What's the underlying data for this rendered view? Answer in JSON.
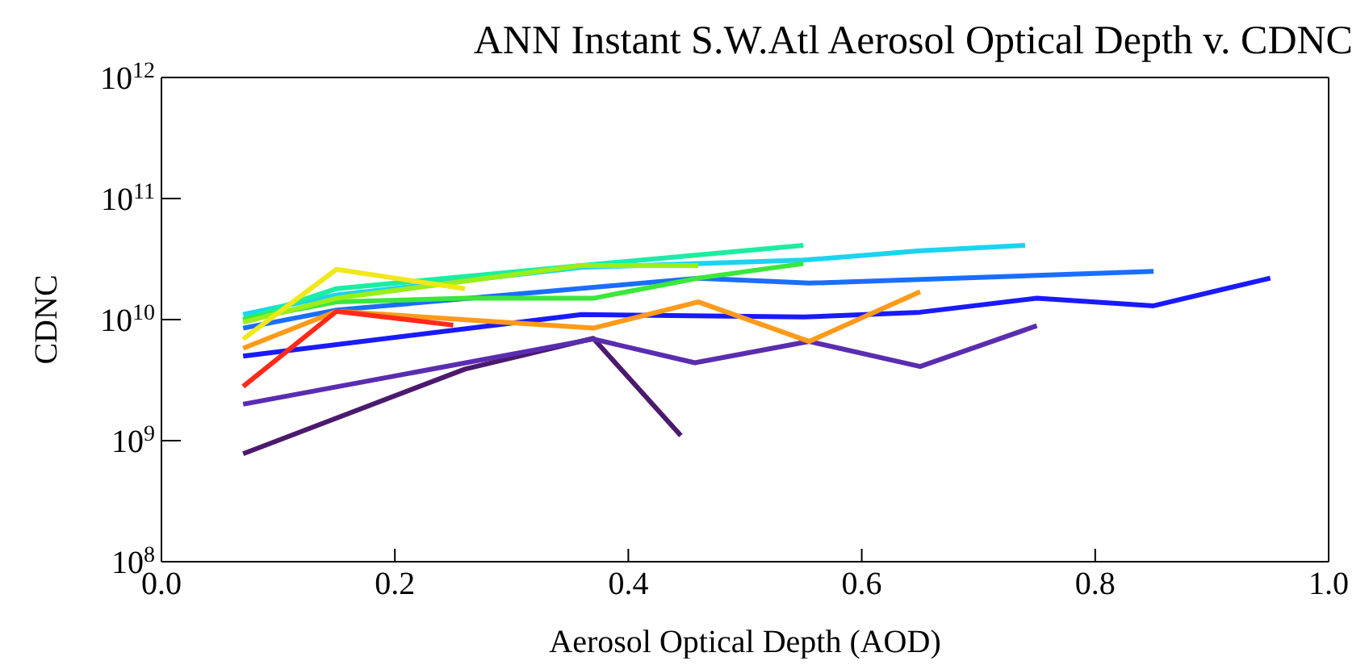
{
  "chart_data": {
    "type": "line",
    "title": "ANN Instant S.W.Atl Aerosol Optical Depth v. CDNC",
    "xlabel": "Aerosol Optical Depth (AOD)",
    "ylabel": "CDNC",
    "log": "y",
    "grid": false,
    "legend": false,
    "marker": "none",
    "line_style": "solid",
    "xlim": [
      0.0,
      1.0
    ],
    "xticks": [
      {
        "value": 0,
        "label": "0.0"
      },
      0.2,
      0.4,
      0.6,
      0.8,
      {
        "value": 1,
        "label": "1.0"
      }
    ],
    "ylim": [
      100000000,
      1000000000000
    ],
    "yticks": [
      {
        "value": 100000000,
        "label": "10$^{8}$"
      },
      {
        "value": 1000000000,
        "label": "10$^{9}$"
      },
      {
        "value": 10000000000,
        "label": "10$^{10}$"
      },
      {
        "value": 100000000000,
        "label": "10$^{11}$"
      },
      {
        "value": 1000000000000,
        "label": "10$^{12}$"
      }
    ],
    "series": [
      {
        "color": "#4b1a6e",
        "x": [
          0.07,
          0.26,
          0.37,
          0.445
        ],
        "values": [
          780000000,
          3900000000,
          7000000000,
          1100000000
        ]
      },
      {
        "color": "#5a2db0",
        "x": [
          0.07,
          0.37,
          0.457,
          0.555,
          0.65,
          0.75
        ],
        "values": [
          2000000000,
          6900000000,
          4400000000,
          6600000000,
          4100000000,
          8900000000
        ]
      },
      {
        "color": "#1a1aff",
        "x": [
          0.07,
          0.36,
          0.55,
          0.65,
          0.75,
          0.85,
          0.95
        ],
        "values": [
          5000000000,
          11000000000,
          10500000000,
          11500000000,
          15000000000,
          13000000000,
          22000000000
        ]
      },
      {
        "color": "#1a6eff",
        "x": [
          0.07,
          0.15,
          0.46,
          0.555,
          0.85
        ],
        "values": [
          8500000000,
          12000000000,
          22000000000,
          20000000000,
          25000000000
        ]
      },
      {
        "color": "#1ad4f0",
        "x": [
          0.07,
          0.15,
          0.36,
          0.55,
          0.65,
          0.74
        ],
        "values": [
          11000000000,
          16000000000,
          27000000000,
          31000000000,
          37000000000,
          41000000000
        ]
      },
      {
        "color": "#1aeea0",
        "x": [
          0.07,
          0.15,
          0.36,
          0.55
        ],
        "values": [
          10000000000,
          18000000000,
          28000000000,
          41000000000
        ]
      },
      {
        "color": "#3ae83a",
        "x": [
          0.07,
          0.15,
          0.26,
          0.37,
          0.46,
          0.55
        ],
        "values": [
          10000000000,
          14000000000,
          15000000000,
          15000000000,
          22000000000,
          29000000000
        ]
      },
      {
        "color": "#9aee1a",
        "x": [
          0.07,
          0.15,
          0.36,
          0.46
        ],
        "values": [
          9500000000,
          15000000000,
          28000000000,
          28000000000
        ]
      },
      {
        "color": "#f0e81a",
        "x": [
          0.07,
          0.15,
          0.26
        ],
        "values": [
          6900000000,
          26000000000,
          18000000000
        ]
      },
      {
        "color": "#ff9a1a",
        "x": [
          0.07,
          0.15,
          0.37,
          0.46,
          0.555,
          0.65
        ],
        "values": [
          5800000000,
          11700000000,
          8500000000,
          14000000000,
          6600000000,
          17000000000
        ]
      },
      {
        "color": "#ff2a1a",
        "x": [
          0.07,
          0.15,
          0.25
        ],
        "values": [
          2800000000,
          11700000000,
          9000000000
        ]
      }
    ]
  }
}
